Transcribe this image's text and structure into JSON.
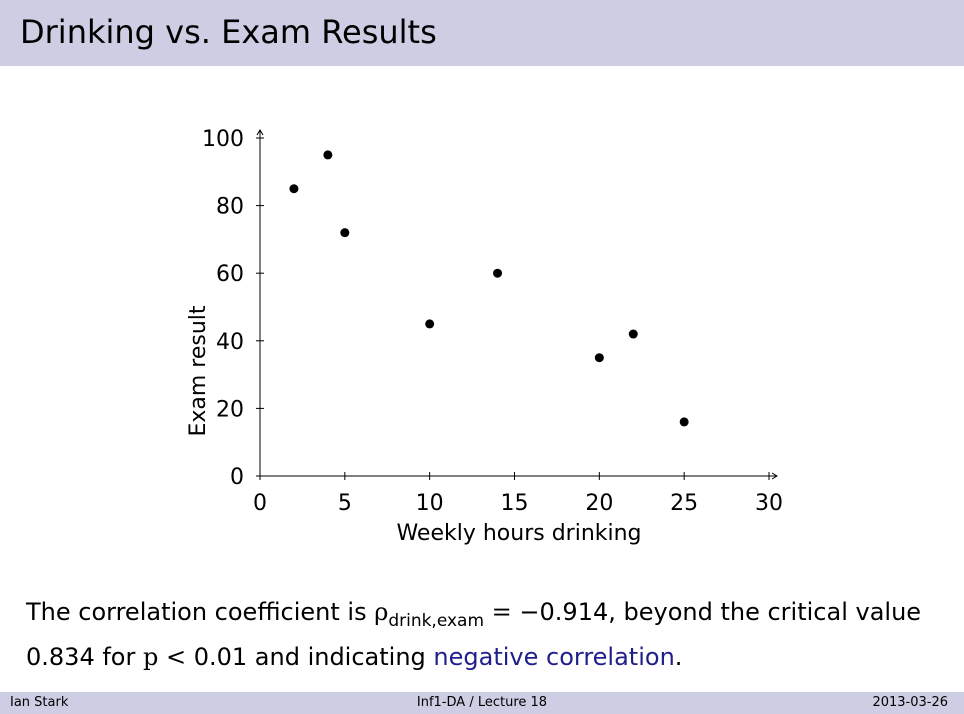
{
  "slide": {
    "title": "Drinking vs. Exam Results"
  },
  "caption": {
    "part1": "The correlation coefficient is ",
    "rho_symbol": "ρ",
    "rho_subscript": "drink,exam",
    "equals": " = ",
    "value": "−0.914",
    "part2": ", beyond the critical value 0.834 for ",
    "p_symbol": "p",
    "less_than": " < ",
    "p_value": "0.01",
    "part3": " and indicating ",
    "highlight": "negative correlation",
    "end": "."
  },
  "footer": {
    "author": "Ian Stark",
    "course": "Inf1-DA / Lecture 18",
    "date": "2013-03-26"
  },
  "colors": {
    "header_band": "#cdcde3",
    "highlight_text": "#1f1f8c",
    "points": "#000000"
  },
  "chart_data": {
    "type": "scatter",
    "title": "",
    "xlabel": "Weekly hours drinking",
    "ylabel": "Exam result",
    "xlim": [
      0,
      30
    ],
    "ylim": [
      0,
      100
    ],
    "x_ticks": [
      0,
      5,
      10,
      15,
      20,
      25,
      30
    ],
    "y_ticks": [
      0,
      20,
      40,
      60,
      80,
      100
    ],
    "grid": false,
    "points": [
      {
        "x": 2,
        "y": 85
      },
      {
        "x": 4,
        "y": 95
      },
      {
        "x": 5,
        "y": 72
      },
      {
        "x": 10,
        "y": 45
      },
      {
        "x": 14,
        "y": 60
      },
      {
        "x": 20,
        "y": 35
      },
      {
        "x": 22,
        "y": 42
      },
      {
        "x": 25,
        "y": 16
      }
    ]
  }
}
